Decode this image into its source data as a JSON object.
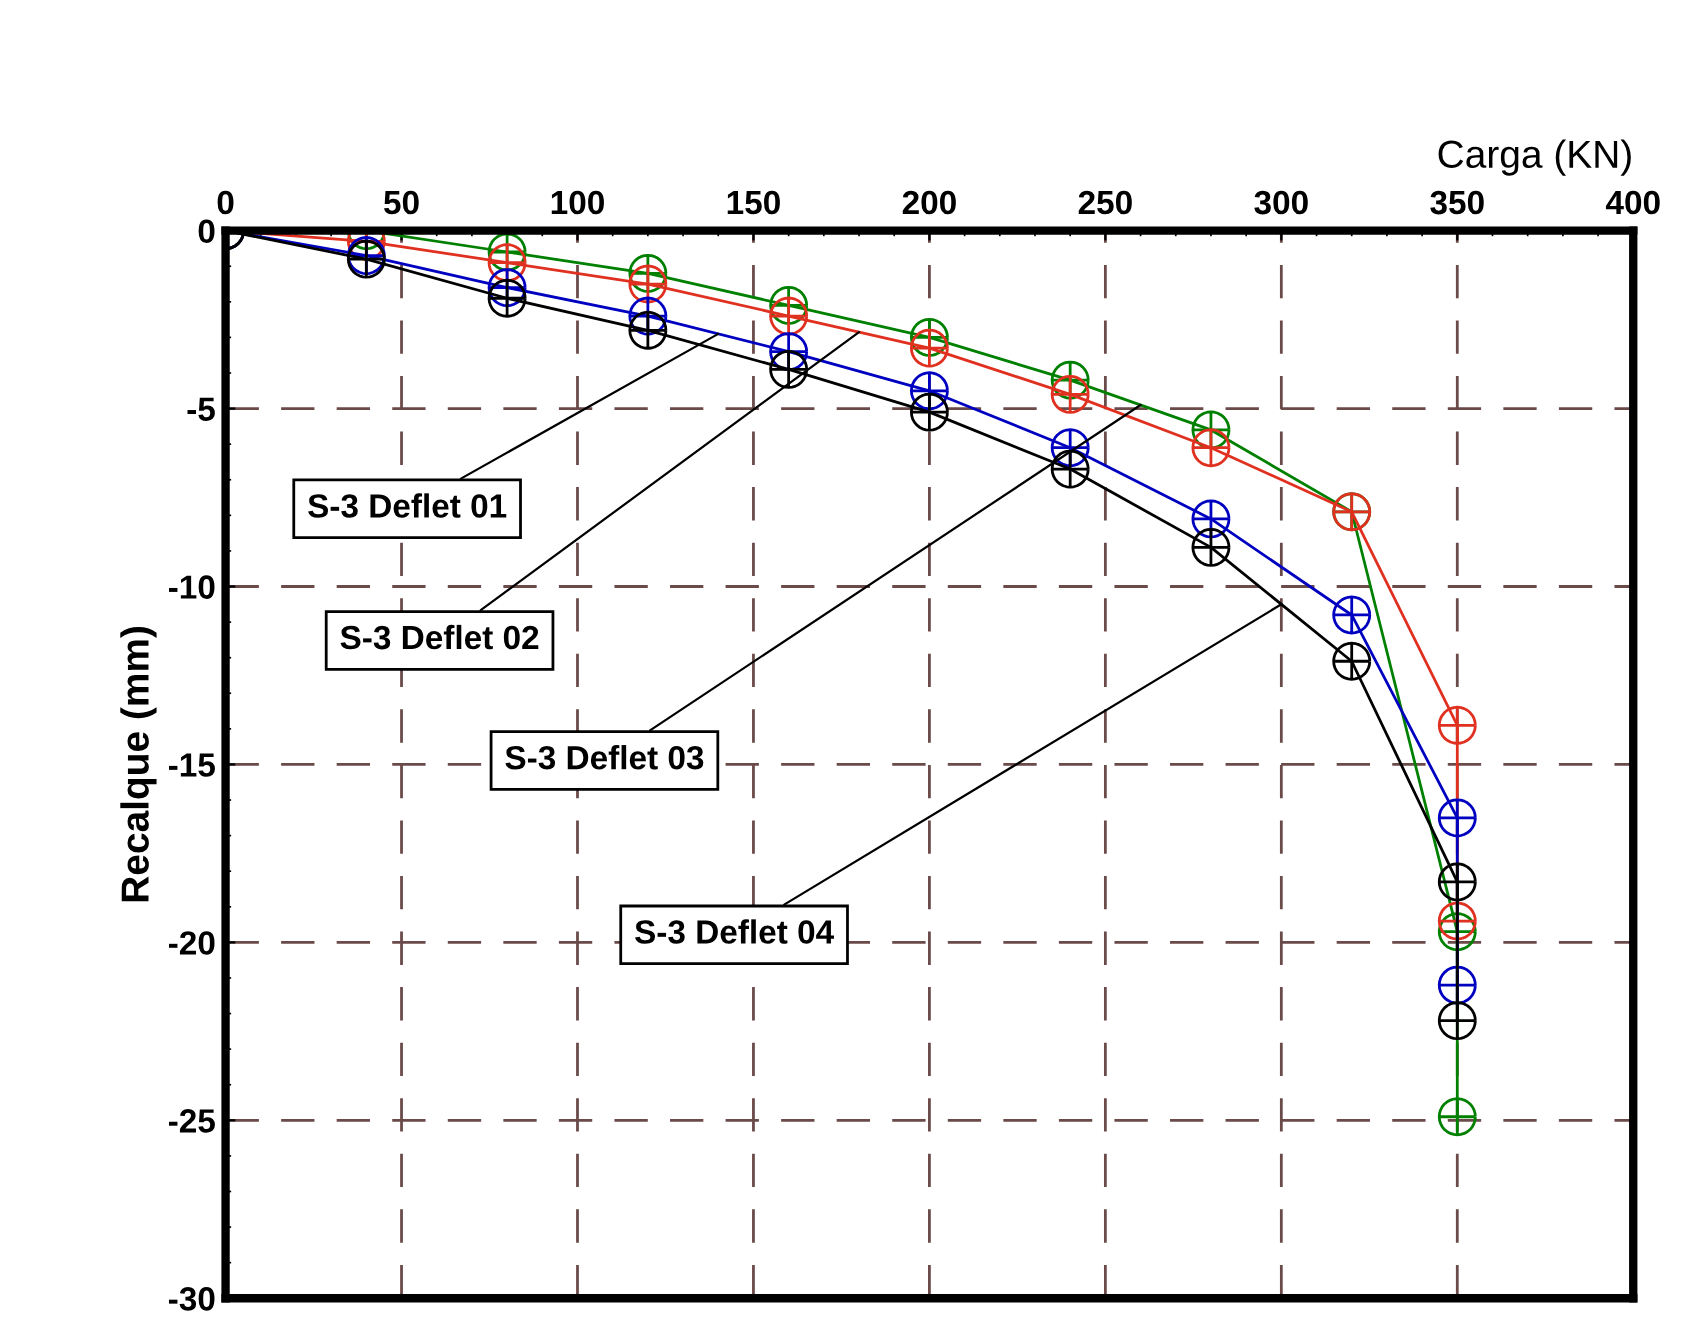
{
  "chart_data": {
    "type": "line",
    "xlabel": "Carga (KN)",
    "ylabel": "Recalque (mm)",
    "xlim": [
      0,
      400
    ],
    "xticks": [
      0,
      50,
      100,
      150,
      200,
      250,
      300,
      350,
      400
    ],
    "ylim": [
      -30,
      0
    ],
    "yticks": [
      0,
      -5,
      -10,
      -15,
      -20,
      -25,
      -30
    ],
    "grid": true,
    "marker": "cross",
    "line_style": "solid",
    "x": [
      0,
      40,
      80,
      120,
      160,
      200,
      240,
      280,
      320,
      350,
      350
    ],
    "series": [
      {
        "color": "#008000",
        "values": [
          0,
          0,
          -0.6,
          -1.2,
          -2.1,
          -3.0,
          -4.2,
          -5.6,
          -7.9,
          -19.7,
          -24.9
        ]
      },
      {
        "color": "#e03020",
        "values": [
          0,
          -0.3,
          -0.9,
          -1.5,
          -2.4,
          -3.3,
          -4.6,
          -6.1,
          -7.9,
          -13.9,
          -19.4
        ]
      },
      {
        "color": "#0000c0",
        "values": [
          0,
          -0.7,
          -1.6,
          -2.4,
          -3.4,
          -4.5,
          -6.1,
          -8.1,
          -10.8,
          -16.5,
          -21.2
        ]
      },
      {
        "color": "#000000",
        "values": [
          0,
          -0.8,
          -1.9,
          -2.8,
          -3.9,
          -5.1,
          -6.7,
          -8.9,
          -12.1,
          -18.3,
          -22.2
        ]
      }
    ],
    "annotations": [
      {
        "text": "S-3 Deflet 01",
        "x": 140,
        "y": -2.9
      },
      {
        "text": "S-3 Deflet 02",
        "x": 180,
        "y": -2.85
      },
      {
        "text": "S-3 Deflet 03",
        "x": 260,
        "y": -4.9
      },
      {
        "text": "S-3 Deflet 04",
        "x": 300,
        "y": -10.5
      }
    ]
  }
}
